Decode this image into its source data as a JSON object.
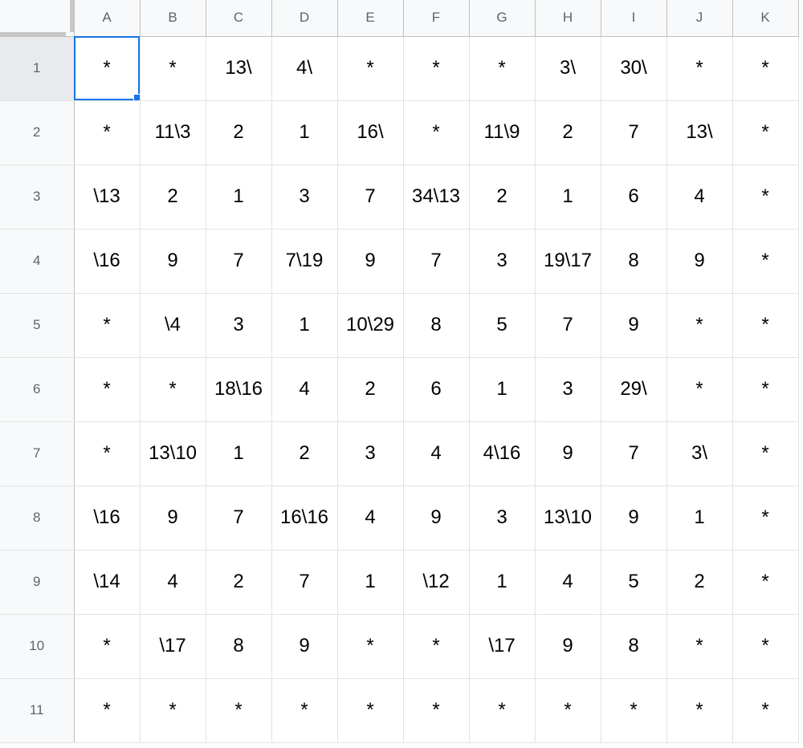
{
  "columns": [
    "A",
    "B",
    "C",
    "D",
    "E",
    "F",
    "G",
    "H",
    "I",
    "J",
    "K"
  ],
  "rows": [
    {
      "label": "1",
      "cells": [
        "*",
        "*",
        "13\\",
        "4\\",
        "*",
        "*",
        "*",
        "3\\",
        "30\\",
        "*",
        "*"
      ]
    },
    {
      "label": "2",
      "cells": [
        "*",
        "11\\3",
        "2",
        "1",
        "16\\",
        "*",
        "11\\9",
        "2",
        "7",
        "13\\",
        "*"
      ]
    },
    {
      "label": "3",
      "cells": [
        "\\13",
        "2",
        "1",
        "3",
        "7",
        "34\\13",
        "2",
        "1",
        "6",
        "4",
        "*"
      ]
    },
    {
      "label": "4",
      "cells": [
        "\\16",
        "9",
        "7",
        "7\\19",
        "9",
        "7",
        "3",
        "19\\17",
        "8",
        "9",
        "*"
      ]
    },
    {
      "label": "5",
      "cells": [
        "*",
        "\\4",
        "3",
        "1",
        "10\\29",
        "8",
        "5",
        "7",
        "9",
        "*",
        "*"
      ]
    },
    {
      "label": "6",
      "cells": [
        "*",
        "*",
        "18\\16",
        "4",
        "2",
        "6",
        "1",
        "3",
        "29\\",
        "*",
        "*"
      ]
    },
    {
      "label": "7",
      "cells": [
        "*",
        "13\\10",
        "1",
        "2",
        "3",
        "4",
        "4\\16",
        "9",
        "7",
        "3\\",
        "*"
      ]
    },
    {
      "label": "8",
      "cells": [
        "\\16",
        "9",
        "7",
        "16\\16",
        "4",
        "9",
        "3",
        "13\\10",
        "9",
        "1",
        "*"
      ]
    },
    {
      "label": "9",
      "cells": [
        "\\14",
        "4",
        "2",
        "7",
        "1",
        "\\12",
        "1",
        "4",
        "5",
        "2",
        "*"
      ]
    },
    {
      "label": "10",
      "cells": [
        "*",
        "\\17",
        "8",
        "9",
        "*",
        "*",
        "\\17",
        "9",
        "8",
        "*",
        "*"
      ]
    },
    {
      "label": "11",
      "cells": [
        "*",
        "*",
        "*",
        "*",
        "*",
        "*",
        "*",
        "*",
        "*",
        "*",
        "*"
      ]
    }
  ],
  "active_cell": {
    "row": 0,
    "col": 0
  },
  "colors": {
    "selection": "#1a73e8",
    "header_bg": "#f8f9fa",
    "header_text": "#5f6368",
    "grid_line": "#e2e3e3"
  }
}
